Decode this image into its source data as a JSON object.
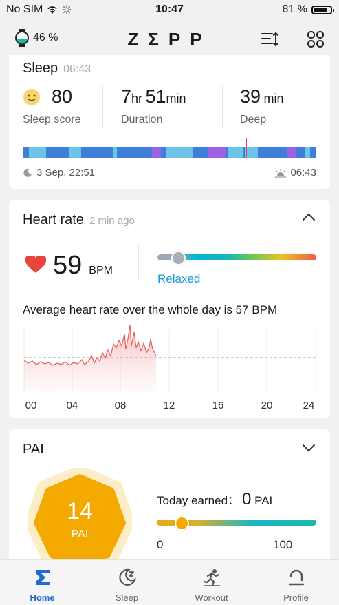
{
  "status_bar": {
    "carrier": "No SIM",
    "time": "10:47",
    "battery": "81 %"
  },
  "header": {
    "watch_battery": "46 %",
    "logo": "ZΣPP"
  },
  "sleep": {
    "title": "Sleep",
    "time": "06:43",
    "score": "80",
    "score_label": "Sleep score",
    "duration_h": "7",
    "duration_h_unit": "hr",
    "duration_m": "51",
    "duration_m_unit": "min",
    "duration_label": "Duration",
    "deep": "39",
    "deep_unit": "min",
    "deep_label": "Deep",
    "start": "3 Sep, 22:51",
    "end": "06:43"
  },
  "heart_rate": {
    "title": "Heart rate",
    "updated": "2 min ago",
    "value": "59",
    "unit": "BPM",
    "zone": "Relaxed",
    "zone_level": 0.08,
    "avg_text": "Average heart rate over the whole day is 57 BPM",
    "x_ticks": [
      "00",
      "04",
      "08",
      "12",
      "16",
      "20",
      "24"
    ]
  },
  "pai": {
    "title": "PAI",
    "value": "14",
    "unit": "PAI",
    "today_label": "Today earned：",
    "today_value": "0",
    "today_unit": "PAI",
    "scale_min": "0",
    "scale_max": "100",
    "level": 0.14
  },
  "tabs": [
    {
      "label": "Home",
      "icon": "home-icon",
      "active": true
    },
    {
      "label": "Sleep",
      "icon": "sleep-icon",
      "active": false
    },
    {
      "label": "Workout",
      "icon": "workout-icon",
      "active": false
    },
    {
      "label": "Profile",
      "icon": "profile-icon",
      "active": false
    }
  ],
  "colors": {
    "accent": "#1f6bd1",
    "heart": "#e8453c",
    "pai": "#f4a900",
    "relaxed": "#1a9ed9",
    "sleep_deep": "#3f7fd9",
    "sleep_light": "#6cc3e8",
    "sleep_rem": "#9b62e6"
  }
}
